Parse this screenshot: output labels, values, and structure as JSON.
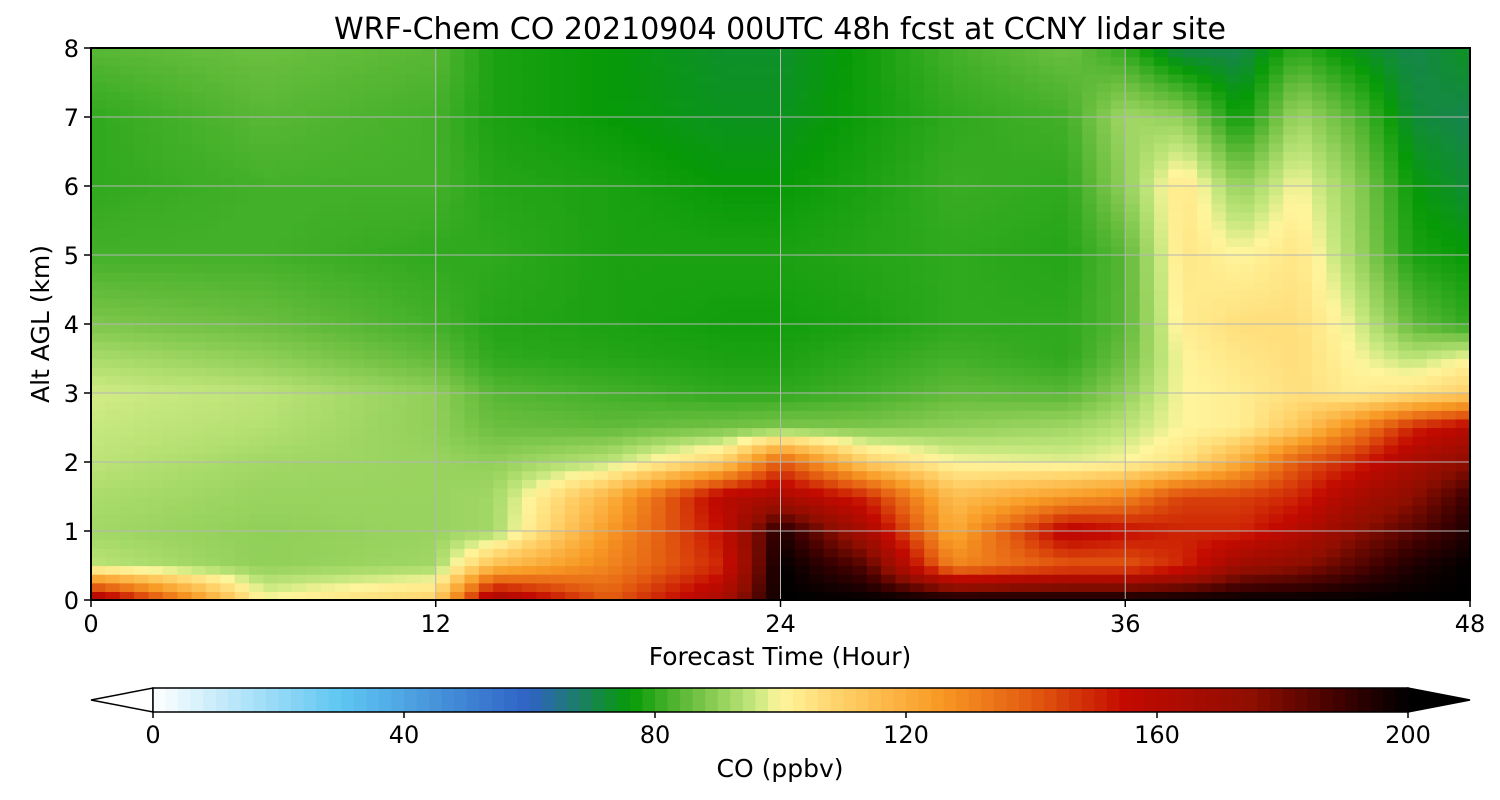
{
  "chart_data": {
    "type": "heatmap",
    "title": "WRF-Chem CO  20210904 00UTC 48h fcst at CCNY lidar site",
    "xlabel": "Forecast Time (Hour)",
    "ylabel": "Alt AGL (km)",
    "xlim": [
      0,
      48
    ],
    "ylim": [
      0,
      8
    ],
    "x_ticks": [
      "0",
      "12",
      "24",
      "36",
      "48"
    ],
    "y_ticks": [
      "0",
      "1",
      "2",
      "3",
      "4",
      "5",
      "6",
      "7",
      "8"
    ],
    "grid": true,
    "x_hours": [
      0,
      6,
      12,
      14,
      18,
      22,
      24,
      27,
      30,
      34,
      36,
      38,
      40,
      42,
      44,
      46,
      48
    ],
    "y_km": [
      0,
      0.5,
      1,
      1.5,
      2,
      2.5,
      3,
      3.5,
      4,
      5,
      6,
      7,
      8
    ],
    "values_ppbv": [
      [
        170,
        100,
        110,
        170,
        140,
        165,
        200,
        200,
        200,
        200,
        200,
        200,
        200,
        200,
        200,
        200,
        200
      ],
      [
        95,
        90,
        92,
        115,
        130,
        150,
        200,
        185,
        130,
        140,
        140,
        150,
        170,
        175,
        185,
        195,
        200
      ],
      [
        92,
        90,
        91,
        92,
        125,
        155,
        195,
        165,
        120,
        160,
        155,
        150,
        150,
        160,
        175,
        185,
        195
      ],
      [
        93,
        91,
        91,
        92,
        118,
        160,
        165,
        150,
        115,
        125,
        130,
        145,
        145,
        150,
        165,
        175,
        190
      ],
      [
        95,
        92,
        91,
        90,
        95,
        110,
        140,
        110,
        100,
        98,
        100,
        105,
        120,
        140,
        150,
        165,
        175
      ],
      [
        96,
        94,
        90,
        86,
        85,
        87,
        88,
        88,
        90,
        92,
        95,
        100,
        102,
        112,
        130,
        150,
        160
      ],
      [
        97,
        95,
        90,
        84,
        82,
        80,
        80,
        82,
        85,
        84,
        90,
        100,
        102,
        106,
        102,
        105,
        110
      ],
      [
        93,
        90,
        85,
        80,
        79,
        78,
        78,
        80,
        82,
        80,
        86,
        100,
        104,
        106,
        100,
        95,
        100
      ],
      [
        88,
        86,
        82,
        79,
        78,
        77,
        77,
        78,
        80,
        80,
        84,
        102,
        106,
        106,
        98,
        85,
        80
      ],
      [
        82,
        82,
        80,
        80,
        78,
        78,
        78,
        79,
        80,
        79,
        84,
        104,
        100,
        104,
        92,
        78,
        76
      ],
      [
        80,
        82,
        82,
        79,
        78,
        76,
        76,
        78,
        81,
        80,
        90,
        104,
        90,
        100,
        90,
        76,
        72
      ],
      [
        80,
        84,
        82,
        78,
        76,
        74,
        74,
        77,
        80,
        82,
        92,
        90,
        76,
        92,
        84,
        72,
        70
      ],
      [
        84,
        86,
        84,
        78,
        76,
        73,
        73,
        77,
        82,
        86,
        80,
        70,
        70,
        80,
        74,
        70,
        74
      ]
    ],
    "colorbar": {
      "label": "CO  (ppbv)",
      "min": 0,
      "max": 200,
      "ticks": [
        "0",
        "40",
        "80",
        "120",
        "160",
        "200"
      ],
      "extend": "both",
      "stops": [
        {
          "v": 0,
          "c": "#ffffff"
        },
        {
          "v": 30,
          "c": "#5ec6f2"
        },
        {
          "v": 60,
          "c": "#2f62c4"
        },
        {
          "v": 76,
          "c": "#079a07"
        },
        {
          "v": 86,
          "c": "#6cbf40"
        },
        {
          "v": 96,
          "c": "#c6e87e"
        },
        {
          "v": 100,
          "c": "#fff59c"
        },
        {
          "v": 110,
          "c": "#ffcf66"
        },
        {
          "v": 125,
          "c": "#f89b25"
        },
        {
          "v": 140,
          "c": "#e35b10"
        },
        {
          "v": 155,
          "c": "#c30a00"
        },
        {
          "v": 175,
          "c": "#8e0e00"
        },
        {
          "v": 190,
          "c": "#3a0000"
        },
        {
          "v": 200,
          "c": "#000000"
        }
      ]
    }
  }
}
